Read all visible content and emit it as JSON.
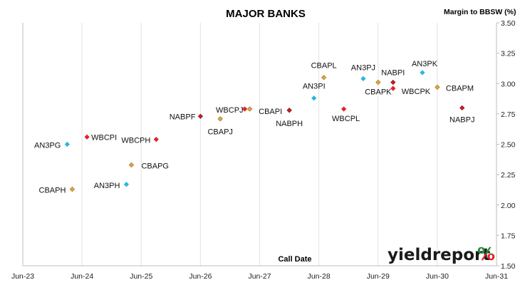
{
  "chart_data": {
    "type": "scatter",
    "title": "MAJOR BANKS",
    "ylabel": "Margin to BBSW (%)",
    "xlabel": "Call Date",
    "ylim": [
      1.5,
      3.5
    ],
    "yticks": [
      "1.50",
      "1.75",
      "2.00",
      "2.25",
      "2.50",
      "2.75",
      "3.00",
      "3.25",
      "3.50"
    ],
    "xtick_labels": [
      "Jun-23",
      "Jun-24",
      "Jun-25",
      "Jun-26",
      "Jun-27",
      "Jun-28",
      "Jun-29",
      "Jun-30",
      "Jun-31"
    ],
    "grid": "vertical",
    "points": [
      {
        "label": "AN3PG",
        "x": "2024-03",
        "y": 2.5,
        "issuer": "ANZ"
      },
      {
        "label": "CBAPH",
        "x": "2024-04",
        "y": 2.13,
        "issuer": "CBA"
      },
      {
        "label": "WBCPI",
        "x": "2024-07",
        "y": 2.56,
        "issuer": "WBC"
      },
      {
        "label": "AN3PH",
        "x": "2025-03",
        "y": 2.17,
        "issuer": "ANZ"
      },
      {
        "label": "CBAPG",
        "x": "2025-04",
        "y": 2.33,
        "issuer": "CBA"
      },
      {
        "label": "WBCPH",
        "x": "2025-09",
        "y": 2.54,
        "issuer": "WBC"
      },
      {
        "label": "NABPF",
        "x": "2026-06",
        "y": 2.73,
        "issuer": "NAB"
      },
      {
        "label": "CBAPJ",
        "x": "2026-10",
        "y": 2.71,
        "issuer": "CBA"
      },
      {
        "label": "WBCPJ",
        "x": "2027-03",
        "y": 2.79,
        "issuer": "WBC"
      },
      {
        "label": "",
        "x": "2027-04",
        "y": 2.79,
        "issuer": "CBA"
      },
      {
        "label": "CBAPI",
        "x": "2027-12",
        "y": 2.78,
        "issuer": "CBA"
      },
      {
        "label": "NABPH",
        "x": "2027-12",
        "y": 2.78,
        "issuer": "NAB"
      },
      {
        "label": "AN3PI",
        "x": "2028-05",
        "y": 2.88,
        "issuer": "ANZ"
      },
      {
        "label": "CBAPL",
        "x": "2028-07",
        "y": 3.05,
        "issuer": "CBA"
      },
      {
        "label": "WBCPL",
        "x": "2028-11",
        "y": 2.79,
        "issuer": "WBC"
      },
      {
        "label": "AN3PJ",
        "x": "2029-03",
        "y": 3.04,
        "issuer": "ANZ"
      },
      {
        "label": "CBAPK",
        "x": "2029-06",
        "y": 3.01,
        "issuer": "CBA"
      },
      {
        "label": "NABPI",
        "x": "2029-09",
        "y": 3.01,
        "issuer": "NAB"
      },
      {
        "label": "WBCPK",
        "x": "2029-09",
        "y": 2.96,
        "issuer": "WBC"
      },
      {
        "label": "AN3PK",
        "x": "2030-03",
        "y": 3.09,
        "issuer": "ANZ"
      },
      {
        "label": "CBAPM",
        "x": "2030-06",
        "y": 2.97,
        "issuer": "CBA"
      },
      {
        "label": "NABPJ",
        "x": "2030-11",
        "y": 2.8,
        "issuer": "NAB"
      }
    ],
    "issuer_colors": {
      "ANZ": "#29b6e0",
      "CBA": "#e8a63a",
      "WBC": "#e8202a",
      "NAB": "#c81e24"
    }
  },
  "logo": {
    "text": "yieldreport",
    "symbol": "%"
  },
  "colors": {
    "grid": "#e3e3e3",
    "axis": "#bcbcbc",
    "logo_green": "#2c8a3d",
    "logo_red": "#e0222a"
  }
}
